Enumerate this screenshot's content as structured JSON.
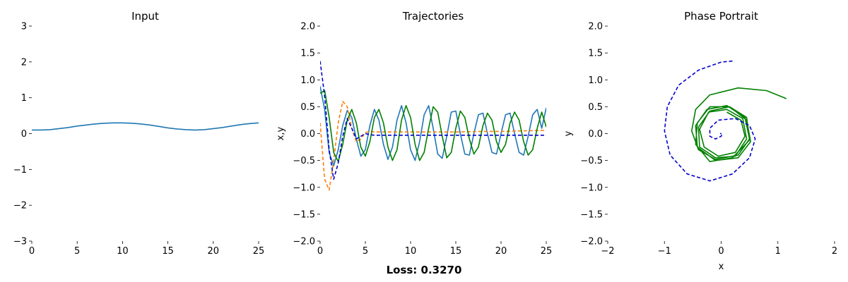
{
  "figure": {
    "loss_text": "Loss: 0.3270"
  },
  "chart_data": [
    {
      "type": "line",
      "title": "Input",
      "xlabel": "",
      "ylabel": "",
      "xlim": [
        0,
        25
      ],
      "ylim": [
        -3,
        3
      ],
      "xticks": [
        0,
        5,
        10,
        15,
        20,
        25
      ],
      "yticks": [
        -3,
        -2,
        -1,
        0,
        1,
        2,
        3
      ],
      "grid": false,
      "series": [
        {
          "color": "#1f77b4",
          "style": "solid",
          "x": [
            0,
            1,
            2,
            3,
            4,
            5,
            6,
            7,
            8,
            9,
            10,
            11,
            12,
            13,
            14,
            15,
            16,
            17,
            18,
            19,
            20,
            21,
            22,
            23,
            24,
            25
          ],
          "y": [
            0.1,
            0.1,
            0.11,
            0.14,
            0.17,
            0.21,
            0.24,
            0.27,
            0.29,
            0.3,
            0.3,
            0.29,
            0.27,
            0.24,
            0.2,
            0.16,
            0.13,
            0.11,
            0.1,
            0.11,
            0.14,
            0.17,
            0.21,
            0.25,
            0.28,
            0.3
          ]
        }
      ]
    },
    {
      "type": "line",
      "title": "Trajectories",
      "xlabel": "",
      "ylabel": "x,y",
      "xlim": [
        0,
        25
      ],
      "ylim": [
        -2,
        2
      ],
      "xticks": [
        0,
        5,
        10,
        15,
        20,
        25
      ],
      "yticks": [
        -2.0,
        -1.5,
        -1.0,
        -0.5,
        0.0,
        0.5,
        1.0,
        1.5,
        2.0
      ],
      "grid": false,
      "series": [
        {
          "color": "#1f77b4",
          "style": "solid",
          "x": [
            0,
            0.5,
            1,
            1.5,
            2,
            2.5,
            3,
            3.5,
            4,
            4.5,
            5,
            5.5,
            6,
            6.5,
            7,
            7.5,
            8,
            8.5,
            9,
            9.5,
            10,
            10.5,
            11,
            11.5,
            12,
            12.5,
            13,
            13.5,
            14,
            14.5,
            15,
            15.5,
            16,
            16.5,
            17,
            17.5,
            18,
            18.5,
            19,
            19.5,
            20,
            20.5,
            21,
            21.5,
            22,
            22.5,
            23,
            23.5,
            24,
            24.5,
            25
          ],
          "y": [
            0.88,
            0.45,
            -0.35,
            -0.6,
            -0.3,
            0.15,
            0.43,
            0.3,
            -0.1,
            -0.42,
            -0.3,
            0.15,
            0.45,
            0.25,
            -0.2,
            -0.48,
            -0.25,
            0.25,
            0.52,
            0.2,
            -0.3,
            -0.5,
            -0.15,
            0.35,
            0.52,
            0.1,
            -0.38,
            -0.46,
            -0.05,
            0.4,
            0.42,
            0.0,
            -0.38,
            -0.4,
            0.0,
            0.35,
            0.38,
            0.0,
            -0.35,
            -0.38,
            0.0,
            0.35,
            0.38,
            0.0,
            -0.35,
            -0.4,
            -0.05,
            0.35,
            0.45,
            0.1,
            0.48
          ]
        },
        {
          "color": "#ff7f0e",
          "style": "dashed",
          "x": [
            0,
            0.5,
            1,
            1.5,
            2,
            2.5,
            3,
            3.5,
            4,
            4.5,
            5,
            5.5,
            6,
            7,
            8,
            10,
            12,
            15,
            18,
            20,
            22,
            25
          ],
          "y": [
            0.2,
            -0.85,
            -1.05,
            -0.5,
            0.2,
            0.6,
            0.5,
            0.1,
            -0.15,
            -0.1,
            0.02,
            0.04,
            0.03,
            0.03,
            0.03,
            0.03,
            0.03,
            0.03,
            0.04,
            0.04,
            0.05,
            0.06
          ]
        },
        {
          "color": "#008000",
          "style": "solid",
          "x": [
            0,
            0.5,
            1,
            1.5,
            2,
            2.5,
            3,
            3.5,
            4,
            4.5,
            5,
            5.5,
            6,
            6.5,
            7,
            7.5,
            8,
            8.5,
            9,
            9.5,
            10,
            10.5,
            11,
            11.5,
            12,
            12.5,
            13,
            13.5,
            14,
            14.5,
            15,
            15.5,
            16,
            16.5,
            17,
            17.5,
            18,
            18.5,
            19,
            19.5,
            20,
            20.5,
            21,
            21.5,
            22,
            22.5,
            23,
            23.5,
            24,
            24.5,
            25
          ],
          "y": [
            0.75,
            0.8,
            0.3,
            -0.35,
            -0.52,
            -0.2,
            0.25,
            0.45,
            0.2,
            -0.25,
            -0.42,
            -0.15,
            0.3,
            0.45,
            0.2,
            -0.25,
            -0.5,
            -0.3,
            0.25,
            0.52,
            0.3,
            -0.2,
            -0.5,
            -0.35,
            0.1,
            0.5,
            0.4,
            -0.05,
            -0.45,
            -0.35,
            0.1,
            0.42,
            0.3,
            -0.1,
            -0.38,
            -0.25,
            0.15,
            0.38,
            0.25,
            -0.15,
            -0.35,
            -0.2,
            0.2,
            0.4,
            0.25,
            -0.15,
            -0.4,
            -0.3,
            0.1,
            0.4,
            0.12
          ]
        },
        {
          "color": "#0000cd",
          "style": "dashed",
          "x": [
            0,
            0.5,
            1,
            1.5,
            2,
            2.5,
            3,
            3.5,
            4,
            4.5,
            5,
            5.5,
            6,
            7,
            8,
            10,
            12,
            15,
            18,
            20,
            22,
            25
          ],
          "y": [
            1.35,
            0.7,
            -0.3,
            -0.85,
            -0.55,
            -0.05,
            0.28,
            0.1,
            -0.1,
            -0.05,
            0.0,
            -0.02,
            -0.03,
            -0.03,
            -0.03,
            -0.03,
            -0.03,
            -0.03,
            -0.03,
            -0.03,
            -0.03,
            -0.03
          ]
        }
      ]
    },
    {
      "type": "line",
      "title": "Phase Portrait",
      "xlabel": "x",
      "ylabel": "y",
      "xlim": [
        -2,
        2
      ],
      "ylim": [
        -2,
        2
      ],
      "xticks": [
        -2,
        -1,
        0,
        1,
        2
      ],
      "yticks": [
        -2.0,
        -1.5,
        -1.0,
        -0.5,
        0.0,
        0.5,
        1.0,
        1.5,
        2.0
      ],
      "grid": false,
      "series": [
        {
          "color": "#008000",
          "style": "solid",
          "x": [
            1.15,
            0.8,
            0.3,
            -0.2,
            -0.45,
            -0.52,
            -0.4,
            -0.1,
            0.3,
            0.5,
            0.42,
            0.1,
            -0.25,
            -0.45,
            -0.42,
            -0.1,
            0.3,
            0.52,
            0.45,
            0.15,
            -0.2,
            -0.42,
            -0.45,
            -0.2,
            0.2,
            0.5,
            0.45,
            0.15,
            -0.2,
            -0.4,
            -0.38,
            -0.1,
            0.25,
            0.45,
            0.38,
            0.1,
            -0.22,
            -0.38,
            -0.3,
            -0.05,
            0.25,
            0.42,
            0.35,
            0.1
          ],
          "y": [
            0.65,
            0.8,
            0.85,
            0.72,
            0.45,
            0.05,
            -0.3,
            -0.48,
            -0.4,
            -0.1,
            0.3,
            0.52,
            0.45,
            0.15,
            -0.25,
            -0.5,
            -0.45,
            -0.15,
            0.25,
            0.5,
            0.5,
            0.2,
            -0.2,
            -0.52,
            -0.45,
            -0.12,
            0.3,
            0.5,
            0.42,
            0.12,
            -0.25,
            -0.45,
            -0.42,
            -0.1,
            0.28,
            0.45,
            0.4,
            0.08,
            -0.25,
            -0.42,
            -0.35,
            -0.05,
            0.25,
            0.4
          ]
        },
        {
          "color": "#0000cd",
          "style": "dashed",
          "x": [
            0.2,
            0.0,
            -0.4,
            -0.75,
            -0.95,
            -1.0,
            -0.9,
            -0.6,
            -0.2,
            0.2,
            0.5,
            0.6,
            0.5,
            0.25,
            -0.05,
            -0.2,
            -0.2,
            -0.1,
            0.0,
            0.02,
            -0.02
          ],
          "y": [
            1.35,
            1.33,
            1.18,
            0.9,
            0.5,
            0.05,
            -0.4,
            -0.75,
            -0.88,
            -0.75,
            -0.45,
            -0.1,
            0.15,
            0.28,
            0.25,
            0.1,
            -0.05,
            -0.1,
            -0.05,
            0.0,
            0.0
          ]
        }
      ]
    }
  ]
}
